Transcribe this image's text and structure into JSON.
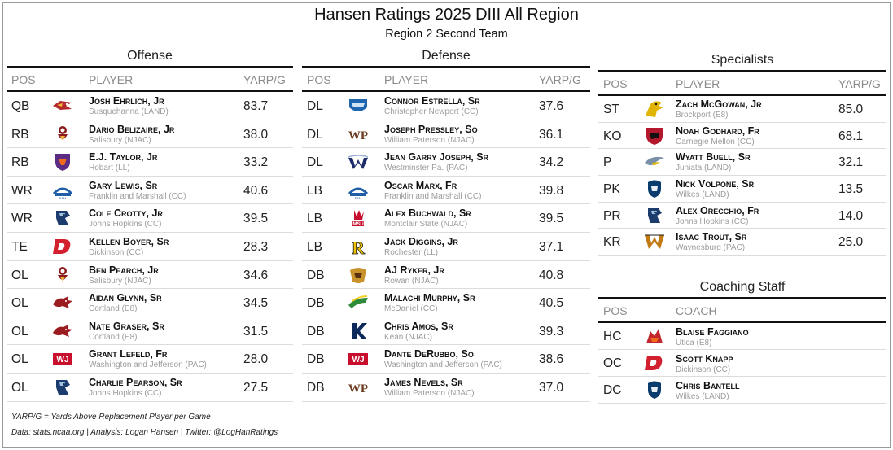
{
  "title": "Hansen Ratings 2025 DIII All Region",
  "subtitle": "Region 2 Second Team",
  "offense": {
    "title": "Offense",
    "headers": {
      "pos": "POS",
      "player": "PLAYER",
      "value": "YARP/G"
    },
    "rows": [
      {
        "pos": "QB",
        "name": "Josh Ehrlich, Jr",
        "school": "Susquehanna (LAND)",
        "value": "83.7",
        "logo": "hawk-logo",
        "color": "#b3282d"
      },
      {
        "pos": "RB",
        "name": "Dario Belizaire, Jr",
        "school": "Salisbury (NJAC)",
        "value": "38.0",
        "logo": "seagull-logo",
        "color": "#8b1a1a"
      },
      {
        "pos": "RB",
        "name": "E.J. Taylor, Jr",
        "school": "Hobart (LL)",
        "value": "33.2",
        "logo": "shield-logo",
        "color": "#5b2c83"
      },
      {
        "pos": "WR",
        "name": "Gary Lewis, Sr",
        "school": "Franklin and Marshall (CC)",
        "value": "40.6",
        "logo": "diplomats-logo",
        "color": "#1f5fa8"
      },
      {
        "pos": "WR",
        "name": "Cole Crotty, Jr",
        "school": "Johns Hopkins (CC)",
        "value": "39.5",
        "logo": "bluejay-logo",
        "color": "#1d3c6e"
      },
      {
        "pos": "TE",
        "name": "Kellen Boyer, Sr",
        "school": "Dickinson (CC)",
        "value": "28.3",
        "logo": "d-logo",
        "color": "#d2202f"
      },
      {
        "pos": "OL",
        "name": "Ben Pearch, Jr",
        "school": "Salisbury (NJAC)",
        "value": "34.6",
        "logo": "seagull-logo",
        "color": "#8b1a1a"
      },
      {
        "pos": "OL",
        "name": "Aidan Glynn, Sr",
        "school": "Cortland (E8)",
        "value": "34.5",
        "logo": "dragon-logo",
        "color": "#9b1c20"
      },
      {
        "pos": "OL",
        "name": "Nate Graser, Sr",
        "school": "Cortland (E8)",
        "value": "31.5",
        "logo": "dragon-logo",
        "color": "#9b1c20"
      },
      {
        "pos": "OL",
        "name": "Grant Lefeld, Fr",
        "school": "Washington and Jefferson (PAC)",
        "value": "28.0",
        "logo": "wj-logo",
        "color": "#c8102e"
      },
      {
        "pos": "OL",
        "name": "Charlie Pearson, Sr",
        "school": "Johns Hopkins (CC)",
        "value": "27.5",
        "logo": "bluejay-logo",
        "color": "#1d3c6e"
      }
    ]
  },
  "defense": {
    "title": "Defense",
    "headers": {
      "pos": "POS",
      "player": "PLAYER",
      "value": "YARP/G"
    },
    "rows": [
      {
        "pos": "DL",
        "name": "Connor Estrella, Sr",
        "school": "Christopher Newport (CC)",
        "value": "37.6",
        "logo": "captains-logo",
        "color": "#1f66b0"
      },
      {
        "pos": "DL",
        "name": "Joseph Pressley, So",
        "school": "William Paterson (NJAC)",
        "value": "36.1",
        "logo": "wp-logo",
        "color": "#6b3a1e"
      },
      {
        "pos": "DL",
        "name": "Jean Garry Joseph, Sr",
        "school": "Westminster Pa. (PAC)",
        "value": "34.2",
        "logo": "w-wing-logo",
        "color": "#1c2c6b"
      },
      {
        "pos": "LB",
        "name": "Oscar Marx, Fr",
        "school": "Franklin and Marshall (CC)",
        "value": "39.8",
        "logo": "diplomats-logo",
        "color": "#1f5fa8"
      },
      {
        "pos": "LB",
        "name": "Alex Buchwald, Sr",
        "school": "Montclair State (NJAC)",
        "value": "39.5",
        "logo": "msu-logo",
        "color": "#c8102e"
      },
      {
        "pos": "LB",
        "name": "Jack Diggins, Jr",
        "school": "Rochester (LL)",
        "value": "37.1",
        "logo": "r-logo",
        "color": "#f1c400"
      },
      {
        "pos": "DB",
        "name": "AJ Ryker, Jr",
        "school": "Rowan (NJAC)",
        "value": "40.8",
        "logo": "prof-logo",
        "color": "#c8932b"
      },
      {
        "pos": "DB",
        "name": "Malachi Murphy, Sr",
        "school": "McDaniel (CC)",
        "value": "40.5",
        "logo": "terror-logo",
        "color": "#2e8b3a"
      },
      {
        "pos": "DB",
        "name": "Chris Amos, Sr",
        "school": "Kean (NJAC)",
        "value": "39.3",
        "logo": "k-logo",
        "color": "#0b2a5b"
      },
      {
        "pos": "DB",
        "name": "Dante DeRubbo, So",
        "school": "Washington and Jefferson (PAC)",
        "value": "38.6",
        "logo": "wj-logo",
        "color": "#c8102e"
      },
      {
        "pos": "DB",
        "name": "James Nevels, Sr",
        "school": "William Paterson (NJAC)",
        "value": "37.0",
        "logo": "wp-logo",
        "color": "#6b3a1e"
      }
    ]
  },
  "specialists": {
    "title": "Specialists",
    "headers": {
      "pos": "POS",
      "player": "PLAYER",
      "value": "YARP/G"
    },
    "rows": [
      {
        "pos": "ST",
        "name": "Zach McGowan, Jr",
        "school": "Brockport (E8)",
        "value": "85.0",
        "logo": "eagle-logo",
        "color": "#e0b400"
      },
      {
        "pos": "KO",
        "name": "Noah Godhard, Fr",
        "school": "Carnegie Mellon (CC)",
        "value": "68.1",
        "logo": "scottie-logo",
        "color": "#b3182d"
      },
      {
        "pos": "P",
        "name": "Wyatt Buell, Sr",
        "school": "Juniata (LAND)",
        "value": "32.1",
        "logo": "eagle-wing-logo",
        "color": "#7a8fa8"
      },
      {
        "pos": "PK",
        "name": "Nick Volpone, Sr",
        "school": "Wilkes (LAND)",
        "value": "13.5",
        "logo": "colonel-logo",
        "color": "#0b3c6e"
      },
      {
        "pos": "PR",
        "name": "Alex Orecchio, Fr",
        "school": "Johns Hopkins (CC)",
        "value": "14.0",
        "logo": "bluejay-logo",
        "color": "#1d3c6e"
      },
      {
        "pos": "KR",
        "name": "Isaac Trout, Sr",
        "school": "Waynesburg (PAC)",
        "value": "25.0",
        "logo": "waynesburg-logo",
        "color": "#c27a12"
      }
    ]
  },
  "coaching": {
    "title": "Coaching Staff",
    "headers": {
      "pos": "POS",
      "coach": "COACH"
    },
    "rows": [
      {
        "pos": "HC",
        "name": "Blaise Faggiano",
        "school": "Utica (E8)",
        "logo": "pioneer-logo",
        "color": "#c1272d"
      },
      {
        "pos": "OC",
        "name": "Scott Knapp",
        "school": "Dickinson (CC)",
        "logo": "d-logo",
        "color": "#d2202f"
      },
      {
        "pos": "DC",
        "name": "Chris Bantell",
        "school": "Wilkes (LAND)",
        "logo": "colonel-logo",
        "color": "#0b3c6e"
      }
    ]
  },
  "footnote": "YARP/G = Yards Above Replacement Player per Game",
  "credit": "Data: stats.ncaa.org | Analysis: Logan Hansen | Twitter: @LogHanRatings"
}
